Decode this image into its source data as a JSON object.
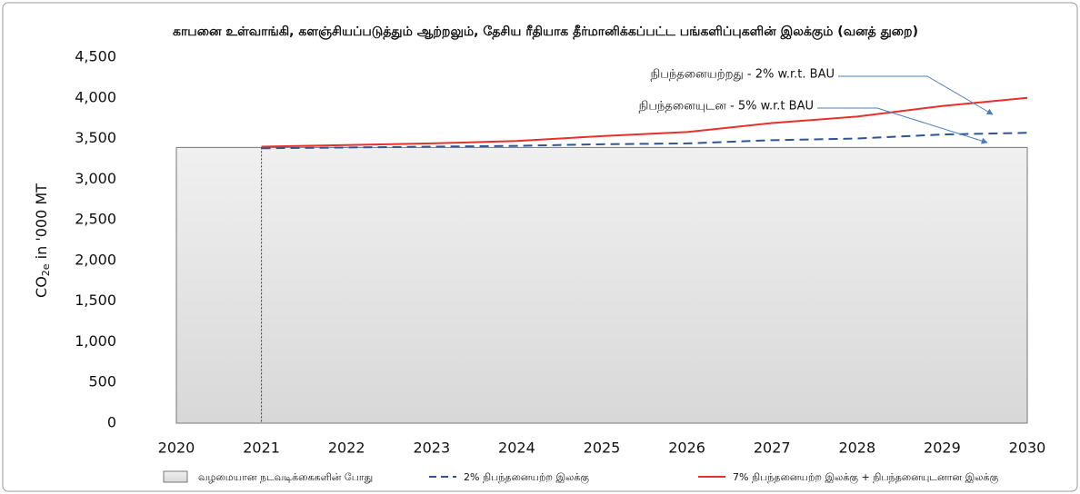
{
  "chart_data": {
    "type": "line",
    "title": "காபனை உள்வாங்கி, களஞ்சியப்படுத்தும் ஆற்றலும், தேசிய ரீதியாக தீர்மானிக்கப்பட்ட பங்களிப்புகளின் இலக்கும் (வனத் துறை)",
    "y_label": [
      "CO",
      "2e",
      " in '000 MT"
    ],
    "categories": [
      "2020",
      "2021",
      "2022",
      "2023",
      "2024",
      "2025",
      "2026",
      "2027",
      "2028",
      "2029",
      "2030"
    ],
    "series": [
      {
        "name": "வழமையான நடவடிக்கைகளின் போது",
        "style": "area",
        "color": "#e4e4e4",
        "values": [
          3390,
          3390,
          3390,
          3390,
          3390,
          3390,
          3390,
          3390,
          3390,
          3390,
          3390
        ]
      },
      {
        "name": "2% நிபந்தனையற்ற இலக்கு",
        "style": "dashed",
        "color": "#2f5597",
        "values": [
          null,
          3380,
          3390,
          3400,
          3410,
          3430,
          3440,
          3480,
          3500,
          3550,
          3570
        ]
      },
      {
        "name": "7% நிபந்தனையற்ற இலக்கு + நிபந்தனையுடனான இலக்கு",
        "style": "solid",
        "color": "#e8302a",
        "values": [
          null,
          3400,
          3420,
          3440,
          3470,
          3530,
          3580,
          3690,
          3770,
          3900,
          4000
        ]
      }
    ],
    "annotations": [
      "நிபந்தனையற்றது - 2% w.r.t. BAU",
      "நிபந்தனையுடன - 5% w.r.t BAU"
    ],
    "ylim": [
      0,
      4500
    ],
    "yticks": [
      0,
      500,
      {
        "value": 1000,
        "label": "1,000"
      },
      {
        "value": 1500,
        "label": "1,500"
      },
      {
        "value": 2000,
        "label": "2,000"
      },
      {
        "value": 2500,
        "label": "2,500"
      },
      {
        "value": 3000,
        "label": "3,000"
      },
      {
        "value": 3500,
        "label": "3,500"
      },
      {
        "value": 4000,
        "label": "4,000"
      },
      {
        "value": 4500,
        "label": "4,500"
      }
    ],
    "grid": false,
    "legend": "bottom"
  }
}
